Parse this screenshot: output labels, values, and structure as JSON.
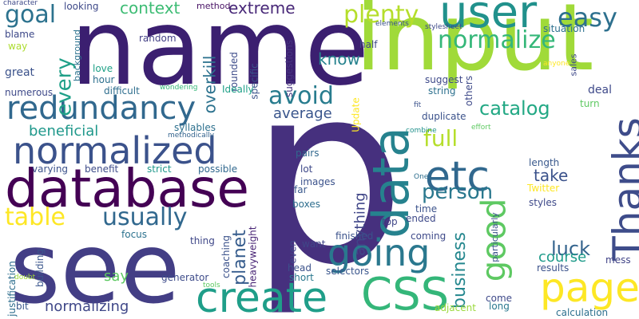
{
  "words": [
    "p",
    "name",
    "see",
    "input",
    "database",
    "redundancy",
    "normalized",
    "create",
    "CSS",
    "data",
    "user",
    "page",
    "etc",
    "Thanks",
    "going",
    "good",
    "table",
    "usually",
    "plenty",
    "normalize",
    "easy",
    "avoid",
    "person",
    "full",
    "goal",
    "every",
    "catalog",
    "context",
    "extreme",
    "know",
    "planet",
    "luck",
    "business",
    "take",
    "course",
    "average",
    "normalizing",
    "beneficial",
    "anything",
    "say",
    "overkill",
    "blame",
    "way",
    "looking",
    "method",
    "random",
    "background",
    "great",
    "love",
    "hour",
    "numerous",
    "difficult",
    "rounded",
    "specific",
    "suggestions",
    "Ideally",
    "syllables",
    "wondering",
    "methodically",
    "coaching",
    "heavyweight",
    "justification",
    "building",
    "thing",
    "focus",
    "benefit",
    "strict",
    "possible",
    "varying",
    "generator",
    "bit",
    "doubt",
    "tools",
    "head",
    "short",
    "selectors",
    "adjacent",
    "results",
    "calculation",
    "come",
    "long",
    "mess",
    "particularly",
    "Twitter",
    "styles",
    "ended",
    "time",
    "top",
    "coming",
    "finished",
    "want",
    "even",
    "boxes",
    "far",
    "lot",
    "images",
    "pairs",
    "length",
    "One",
    "combine",
    "duplicate",
    "string",
    "fit",
    "effort",
    "others",
    "Update",
    "suggest",
    "half",
    "elements",
    "stylesheet",
    "situation",
    "sales",
    "anyone",
    "deal",
    "turn",
    "character",
    "properties"
  ]
}
